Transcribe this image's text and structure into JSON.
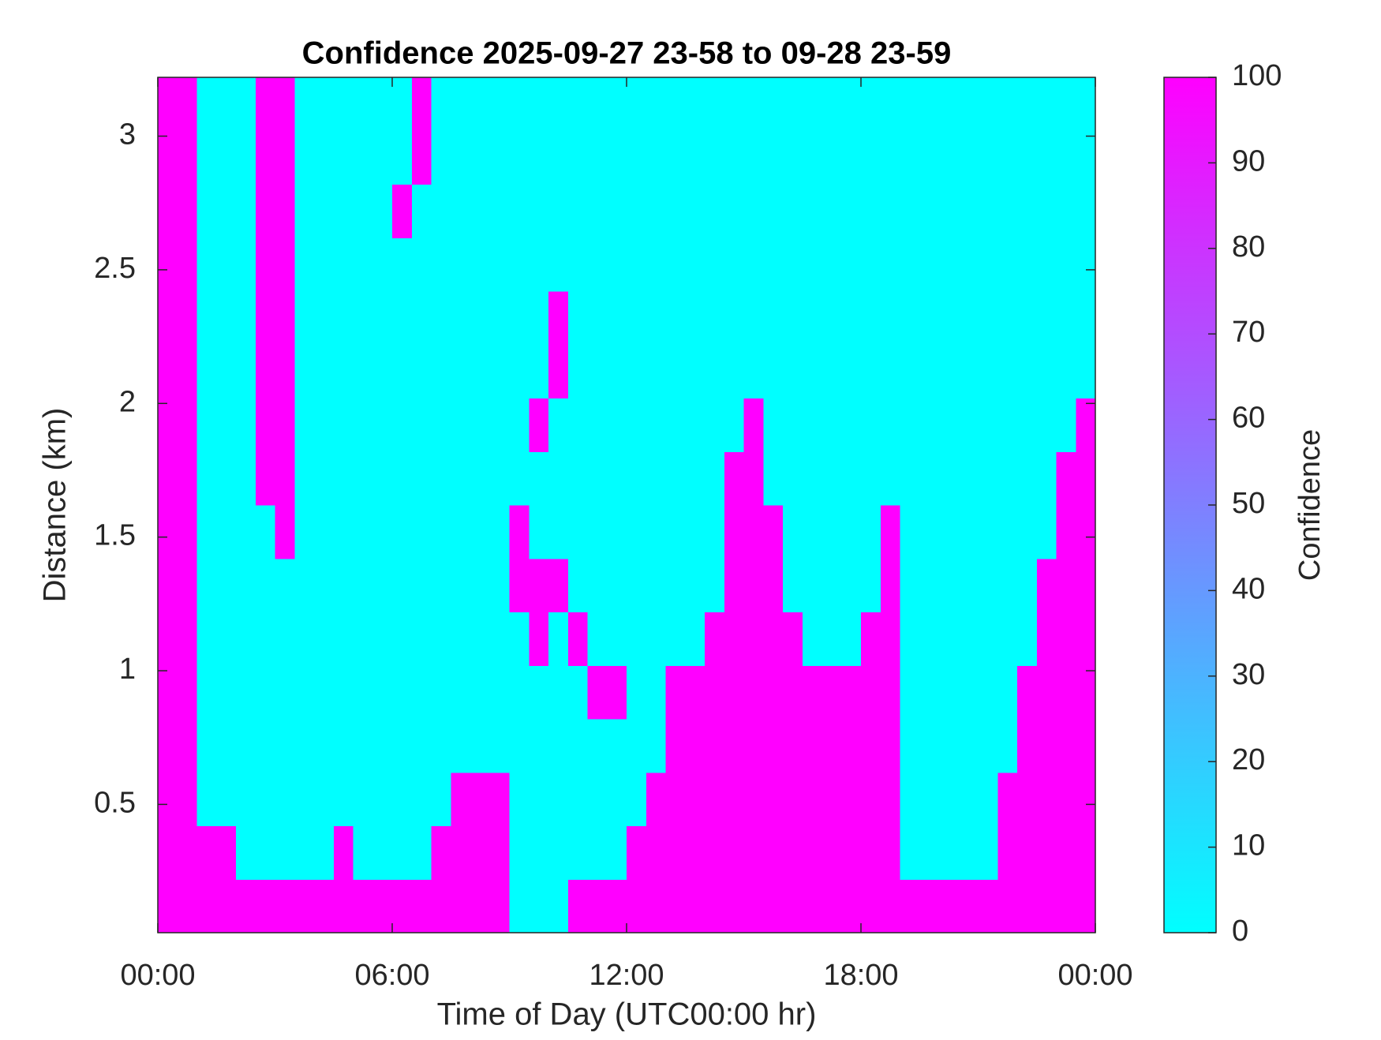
{
  "chart_data": {
    "type": "heatmap",
    "title": "Confidence 2025-09-27 23-58 to 09-28 23-59",
    "x_label": "Time of Day (UTC00:00 hr)",
    "y_label": "Distance (km)",
    "colorbar_label": "Confidence",
    "colormap": [
      "#00ffff",
      "#ff00ff"
    ],
    "xlim": [
      0,
      24
    ],
    "xticks": [
      {
        "value": 0,
        "label": "00:00"
      },
      {
        "value": 6,
        "label": "06:00"
      },
      {
        "value": 12,
        "label": "12:00"
      },
      {
        "value": 18,
        "label": "18:00"
      },
      {
        "value": 24,
        "label": "00:00"
      }
    ],
    "ylim": [
      0.02,
      3.22
    ],
    "yticks": [
      0.5,
      1,
      1.5,
      2,
      2.5,
      3
    ],
    "clim": [
      0,
      100
    ],
    "cticks": [
      0,
      10,
      20,
      30,
      40,
      50,
      60,
      70,
      80,
      90,
      100
    ],
    "x": [
      0.25,
      0.75,
      1.25,
      1.75,
      2.25,
      2.75,
      3.25,
      3.75,
      4.25,
      4.75,
      5.25,
      5.75,
      6.25,
      6.75,
      7.25,
      7.75,
      8.25,
      8.75,
      9.25,
      9.75,
      10.25,
      10.75,
      11.25,
      11.75,
      12.25,
      12.75,
      13.25,
      13.75,
      14.25,
      14.75,
      15.25,
      15.75,
      16.25,
      16.75,
      17.25,
      17.75,
      18.25,
      18.75,
      19.25,
      19.75,
      20.25,
      20.75,
      21.25,
      21.75,
      22.25,
      22.75,
      23.25,
      23.75
    ],
    "y": [
      0.12,
      0.32,
      0.52,
      0.72,
      0.92,
      1.12,
      1.32,
      1.52,
      1.72,
      1.92,
      2.12,
      2.32,
      2.52,
      2.72,
      2.92,
      3.12
    ],
    "z": [
      [
        100,
        100,
        100,
        100,
        100,
        100,
        100,
        100,
        100,
        100,
        100,
        100,
        100,
        100,
        100,
        100,
        100,
        100,
        0,
        0,
        0,
        100,
        100,
        100,
        100,
        100,
        100,
        100,
        100,
        100,
        100,
        100,
        100,
        100,
        100,
        100,
        100,
        100,
        100,
        100,
        100,
        100,
        100,
        100,
        100,
        100,
        100,
        100
      ],
      [
        100,
        100,
        100,
        100,
        0,
        0,
        0,
        0,
        0,
        100,
        0,
        0,
        0,
        0,
        100,
        100,
        100,
        100,
        0,
        0,
        0,
        0,
        0,
        0,
        100,
        100,
        100,
        100,
        100,
        100,
        100,
        100,
        100,
        100,
        100,
        100,
        100,
        100,
        0,
        0,
        0,
        0,
        0,
        100,
        100,
        100,
        100,
        100
      ],
      [
        100,
        100,
        0,
        0,
        0,
        0,
        0,
        0,
        0,
        0,
        0,
        0,
        0,
        0,
        0,
        100,
        100,
        100,
        0,
        0,
        0,
        0,
        0,
        0,
        0,
        100,
        100,
        100,
        100,
        100,
        100,
        100,
        100,
        100,
        100,
        100,
        100,
        100,
        0,
        0,
        0,
        0,
        0,
        100,
        100,
        100,
        100,
        100
      ],
      [
        100,
        100,
        0,
        0,
        0,
        0,
        0,
        0,
        0,
        0,
        0,
        0,
        0,
        0,
        0,
        0,
        0,
        0,
        0,
        0,
        0,
        0,
        0,
        0,
        0,
        0,
        100,
        100,
        100,
        100,
        100,
        100,
        100,
        100,
        100,
        100,
        100,
        100,
        0,
        0,
        0,
        0,
        0,
        0,
        100,
        100,
        100,
        100
      ],
      [
        100,
        100,
        0,
        0,
        0,
        0,
        0,
        0,
        0,
        0,
        0,
        0,
        0,
        0,
        0,
        0,
        0,
        0,
        0,
        0,
        0,
        0,
        100,
        100,
        0,
        0,
        100,
        100,
        100,
        100,
        100,
        100,
        100,
        100,
        100,
        100,
        100,
        100,
        0,
        0,
        0,
        0,
        0,
        0,
        100,
        100,
        100,
        100
      ],
      [
        100,
        100,
        0,
        0,
        0,
        0,
        0,
        0,
        0,
        0,
        0,
        0,
        0,
        0,
        0,
        0,
        0,
        0,
        0,
        100,
        0,
        100,
        0,
        0,
        0,
        0,
        0,
        0,
        100,
        100,
        100,
        100,
        100,
        0,
        0,
        0,
        100,
        100,
        0,
        0,
        0,
        0,
        0,
        0,
        0,
        100,
        100,
        100
      ],
      [
        100,
        100,
        0,
        0,
        0,
        0,
        0,
        0,
        0,
        0,
        0,
        0,
        0,
        0,
        0,
        0,
        0,
        0,
        100,
        100,
        100,
        0,
        0,
        0,
        0,
        0,
        0,
        0,
        0,
        100,
        100,
        100,
        0,
        0,
        0,
        0,
        0,
        100,
        0,
        0,
        0,
        0,
        0,
        0,
        0,
        100,
        100,
        100
      ],
      [
        100,
        100,
        0,
        0,
        0,
        0,
        100,
        0,
        0,
        0,
        0,
        0,
        0,
        0,
        0,
        0,
        0,
        0,
        100,
        0,
        0,
        0,
        0,
        0,
        0,
        0,
        0,
        0,
        0,
        100,
        100,
        100,
        0,
        0,
        0,
        0,
        0,
        100,
        0,
        0,
        0,
        0,
        0,
        0,
        0,
        0,
        100,
        100
      ],
      [
        100,
        100,
        0,
        0,
        0,
        100,
        100,
        0,
        0,
        0,
        0,
        0,
        0,
        0,
        0,
        0,
        0,
        0,
        0,
        0,
        0,
        0,
        0,
        0,
        0,
        0,
        0,
        0,
        0,
        100,
        100,
        0,
        0,
        0,
        0,
        0,
        0,
        0,
        0,
        0,
        0,
        0,
        0,
        0,
        0,
        0,
        100,
        100
      ],
      [
        100,
        100,
        0,
        0,
        0,
        100,
        100,
        0,
        0,
        0,
        0,
        0,
        0,
        0,
        0,
        0,
        0,
        0,
        0,
        100,
        0,
        0,
        0,
        0,
        0,
        0,
        0,
        0,
        0,
        0,
        100,
        0,
        0,
        0,
        0,
        0,
        0,
        0,
        0,
        0,
        0,
        0,
        0,
        0,
        0,
        0,
        0,
        100
      ],
      [
        100,
        100,
        0,
        0,
        0,
        100,
        100,
        0,
        0,
        0,
        0,
        0,
        0,
        0,
        0,
        0,
        0,
        0,
        0,
        0,
        100,
        0,
        0,
        0,
        0,
        0,
        0,
        0,
        0,
        0,
        0,
        0,
        0,
        0,
        0,
        0,
        0,
        0,
        0,
        0,
        0,
        0,
        0,
        0,
        0,
        0,
        0,
        0
      ],
      [
        100,
        100,
        0,
        0,
        0,
        100,
        100,
        0,
        0,
        0,
        0,
        0,
        0,
        0,
        0,
        0,
        0,
        0,
        0,
        0,
        100,
        0,
        0,
        0,
        0,
        0,
        0,
        0,
        0,
        0,
        0,
        0,
        0,
        0,
        0,
        0,
        0,
        0,
        0,
        0,
        0,
        0,
        0,
        0,
        0,
        0,
        0,
        0
      ],
      [
        100,
        100,
        0,
        0,
        0,
        100,
        100,
        0,
        0,
        0,
        0,
        0,
        0,
        0,
        0,
        0,
        0,
        0,
        0,
        0,
        0,
        0,
        0,
        0,
        0,
        0,
        0,
        0,
        0,
        0,
        0,
        0,
        0,
        0,
        0,
        0,
        0,
        0,
        0,
        0,
        0,
        0,
        0,
        0,
        0,
        0,
        0,
        0
      ],
      [
        100,
        100,
        0,
        0,
        0,
        100,
        100,
        0,
        0,
        0,
        0,
        0,
        100,
        0,
        0,
        0,
        0,
        0,
        0,
        0,
        0,
        0,
        0,
        0,
        0,
        0,
        0,
        0,
        0,
        0,
        0,
        0,
        0,
        0,
        0,
        0,
        0,
        0,
        0,
        0,
        0,
        0,
        0,
        0,
        0,
        0,
        0,
        0
      ],
      [
        100,
        100,
        0,
        0,
        0,
        100,
        100,
        0,
        0,
        0,
        0,
        0,
        0,
        100,
        0,
        0,
        0,
        0,
        0,
        0,
        0,
        0,
        0,
        0,
        0,
        0,
        0,
        0,
        0,
        0,
        0,
        0,
        0,
        0,
        0,
        0,
        0,
        0,
        0,
        0,
        0,
        0,
        0,
        0,
        0,
        0,
        0,
        0
      ],
      [
        100,
        100,
        0,
        0,
        0,
        100,
        100,
        0,
        0,
        0,
        0,
        0,
        0,
        100,
        0,
        0,
        0,
        0,
        0,
        0,
        0,
        0,
        0,
        0,
        0,
        0,
        0,
        0,
        0,
        0,
        0,
        0,
        0,
        0,
        0,
        0,
        0,
        0,
        0,
        0,
        0,
        0,
        0,
        0,
        0,
        0,
        0,
        0
      ]
    ]
  }
}
